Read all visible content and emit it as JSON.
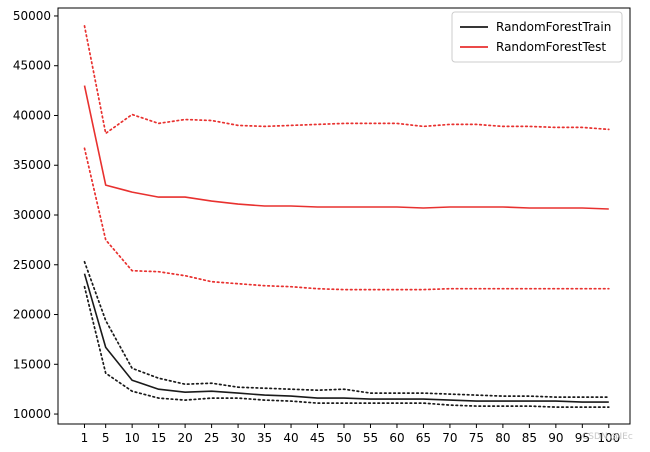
{
  "chart_data": {
    "type": "line",
    "x": [
      1,
      5,
      10,
      15,
      20,
      25,
      30,
      35,
      40,
      45,
      50,
      55,
      60,
      65,
      70,
      75,
      80,
      85,
      90,
      95,
      100
    ],
    "xticks": [
      "1",
      "5",
      "10",
      "15",
      "20",
      "25",
      "30",
      "35",
      "40",
      "45",
      "50",
      "55",
      "60",
      "65",
      "70",
      "75",
      "80",
      "85",
      "90",
      "95",
      "100"
    ],
    "yticks": [
      10000,
      15000,
      20000,
      25000,
      30000,
      35000,
      40000,
      45000,
      50000
    ],
    "ylim": [
      9000,
      50800
    ],
    "legend_position": "top-right",
    "series": [
      {
        "name": "RandomForestTrain",
        "color": "#1a1a1a",
        "style": "solid",
        "values": [
          24100,
          16700,
          13400,
          12500,
          12200,
          12300,
          12100,
          11900,
          11800,
          11600,
          11600,
          11500,
          11500,
          11500,
          11400,
          11300,
          11300,
          11300,
          11300,
          11200,
          11200
        ]
      },
      {
        "color": "#1a1a1a",
        "style": "dotted",
        "values": [
          25300,
          19400,
          14600,
          13600,
          13000,
          13100,
          12700,
          12600,
          12500,
          12400,
          12500,
          12100,
          12100,
          12100,
          12000,
          11900,
          11800,
          11800,
          11700,
          11700,
          11700
        ]
      },
      {
        "color": "#1a1a1a",
        "style": "dotted",
        "values": [
          22800,
          14100,
          12300,
          11600,
          11400,
          11600,
          11600,
          11400,
          11300,
          11100,
          11100,
          11100,
          11100,
          11100,
          10900,
          10800,
          10800,
          10800,
          10700,
          10700,
          10700
        ]
      },
      {
        "name": "RandomForestTest",
        "color": "#e8312f",
        "style": "solid",
        "values": [
          43000,
          33000,
          32300,
          31800,
          31800,
          31400,
          31100,
          30900,
          30900,
          30800,
          30800,
          30800,
          30800,
          30700,
          30800,
          30800,
          30800,
          30700,
          30700,
          30700,
          30600
        ]
      },
      {
        "color": "#e8312f",
        "style": "dotted",
        "values": [
          49000,
          38200,
          40100,
          39200,
          39600,
          39500,
          39000,
          38900,
          39000,
          39100,
          39200,
          39200,
          39200,
          38900,
          39100,
          39100,
          38900,
          38900,
          38800,
          38800,
          38600
        ]
      },
      {
        "color": "#e8312f",
        "style": "dotted",
        "values": [
          36700,
          27500,
          24400,
          24300,
          23900,
          23300,
          23100,
          22900,
          22800,
          22600,
          22500,
          22500,
          22500,
          22500,
          22600,
          22600,
          22600,
          22600,
          22600,
          22600,
          22600
        ]
      }
    ]
  },
  "watermark": "CSDN @IEc"
}
